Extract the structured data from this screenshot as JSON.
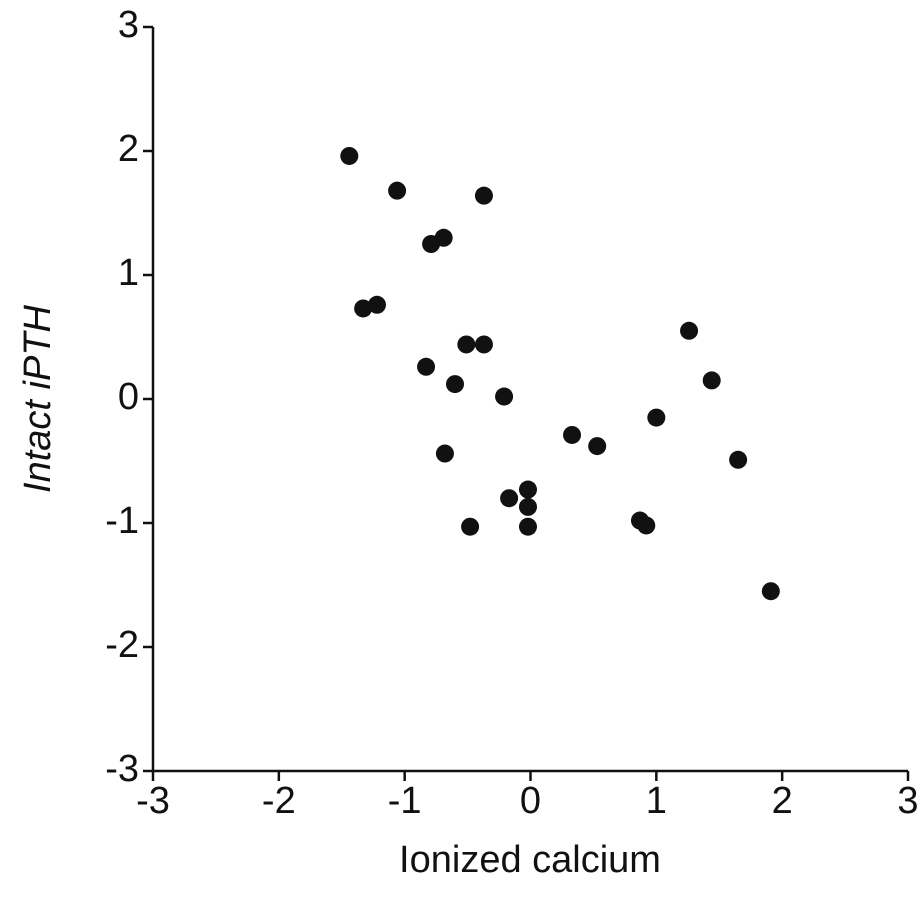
{
  "chart_data": {
    "type": "scatter",
    "x_label": "Ionized calcium",
    "y_label": "Intact iPTH",
    "x": [
      -1.44,
      -1.06,
      -0.37,
      -0.69,
      -0.79,
      -1.33,
      -1.22,
      1.26,
      -0.51,
      -0.37,
      -0.83,
      -0.6,
      1.44,
      -0.21,
      1.0,
      0.33,
      0.53,
      -0.68,
      1.65,
      -0.02,
      -0.17,
      -0.02,
      -0.48,
      -0.02,
      0.87,
      0.92,
      1.91
    ],
    "values": [
      1.96,
      1.68,
      1.64,
      1.3,
      1.25,
      0.73,
      0.76,
      0.55,
      0.44,
      0.44,
      0.26,
      0.12,
      0.15,
      0.02,
      -0.15,
      -0.29,
      -0.38,
      -0.44,
      -0.49,
      -0.73,
      -0.8,
      -0.87,
      -1.03,
      -1.03,
      -0.98,
      -1.02,
      -1.55
    ],
    "color": "#111111",
    "xlim": [
      -3,
      3
    ],
    "xticks": [
      -3,
      -2,
      -1,
      0,
      1,
      2,
      3
    ],
    "ylim": [
      -3,
      3
    ],
    "yticks": [
      -3,
      -2,
      -1,
      0,
      1,
      2,
      3
    ],
    "grid": false
  }
}
